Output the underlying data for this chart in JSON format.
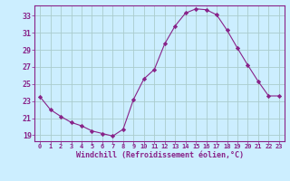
{
  "x": [
    0,
    1,
    2,
    3,
    4,
    5,
    6,
    7,
    8,
    9,
    10,
    11,
    12,
    13,
    14,
    15,
    16,
    17,
    18,
    19,
    20,
    21,
    22,
    23
  ],
  "y": [
    23.5,
    22.0,
    21.2,
    20.5,
    20.1,
    19.5,
    19.2,
    18.9,
    19.7,
    23.2,
    25.6,
    26.7,
    29.7,
    31.8,
    33.3,
    33.8,
    33.7,
    33.1,
    31.3,
    29.2,
    27.2,
    25.3,
    23.6,
    23.6
  ],
  "line_color": "#882288",
  "marker": "D",
  "marker_size": 2.2,
  "background_color": "#cceeff",
  "grid_color": "#aacccc",
  "xlabel": "Windchill (Refroidissement éolien,°C)",
  "xlabel_color": "#882288",
  "yticks": [
    19,
    21,
    23,
    25,
    27,
    29,
    31,
    33
  ],
  "xticks": [
    0,
    1,
    2,
    3,
    4,
    5,
    6,
    7,
    8,
    9,
    10,
    11,
    12,
    13,
    14,
    15,
    16,
    17,
    18,
    19,
    20,
    21,
    22,
    23
  ],
  "ylim": [
    18.3,
    34.2
  ],
  "xlim": [
    -0.5,
    23.5
  ]
}
